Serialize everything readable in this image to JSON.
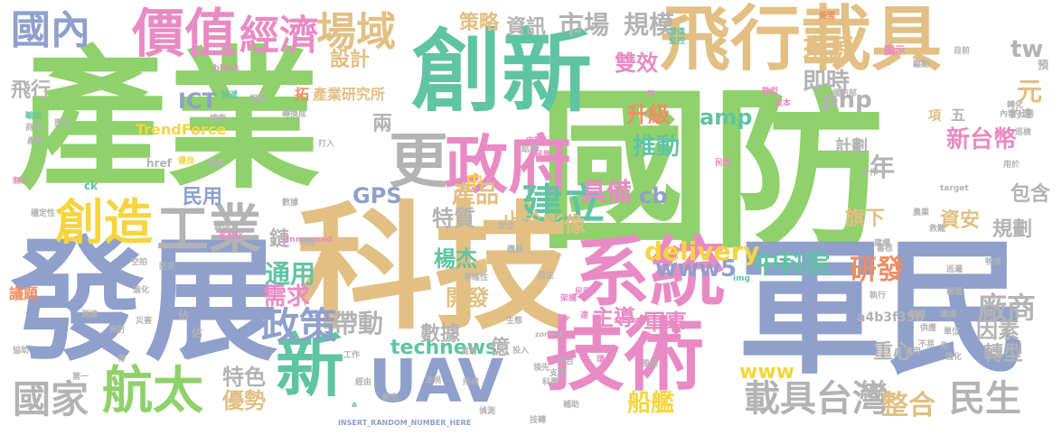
{
  "palette": {
    "green": "#8fd16a",
    "teal": "#5fc4a3",
    "tan": "#e2bf83",
    "blue": "#8ea0cb",
    "pink": "#e88bc4",
    "gray": "#b3b3b3",
    "orange": "#f08d63",
    "yellow": "#f6d43d",
    "darkgray": "#999999"
  },
  "words": [
    {
      "text": "產業",
      "c": "green"
    },
    {
      "text": "國防",
      "c": "green"
    },
    {
      "text": "科技",
      "c": "tan"
    },
    {
      "text": "發展",
      "c": "blue"
    },
    {
      "text": "軍民",
      "c": "blue"
    },
    {
      "text": "創新",
      "c": "teal"
    },
    {
      "text": "飛行載具",
      "c": "tan"
    },
    {
      "text": "技術",
      "c": "pink"
    },
    {
      "text": "系統",
      "c": "pink"
    },
    {
      "text": "政府",
      "c": "pink"
    },
    {
      "text": "新",
      "c": "teal"
    },
    {
      "text": "UAV",
      "c": "blue"
    },
    {
      "text": "更",
      "c": "gray"
    },
    {
      "text": "工業",
      "c": "gray"
    },
    {
      "text": "創造",
      "c": "yellow"
    },
    {
      "text": "航太",
      "c": "green"
    },
    {
      "text": "價值",
      "c": "pink"
    },
    {
      "text": "國內",
      "c": "blue"
    },
    {
      "text": "經濟",
      "c": "pink"
    },
    {
      "text": "場域",
      "c": "tan"
    },
    {
      "text": "建立",
      "c": "teal"
    },
    {
      "text": "具備",
      "c": "pink"
    },
    {
      "text": "國家",
      "c": "gray"
    },
    {
      "text": "載具台灣",
      "c": "gray"
    },
    {
      "text": "民生",
      "c": "gray"
    },
    {
      "text": "政策",
      "c": "blue"
    },
    {
      "text": "廠商",
      "c": "gray"
    },
    {
      "text": "研發",
      "c": "orange"
    },
    {
      "text": "中科院",
      "c": "teal"
    },
    {
      "text": "www5",
      "c": "blue"
    },
    {
      "text": "delivery",
      "c": "yellow"
    },
    {
      "text": "amp",
      "c": "teal"
    },
    {
      "text": "php",
      "c": "gray"
    },
    {
      "text": "ICT",
      "c": "blue"
    },
    {
      "text": "GPS",
      "c": "blue"
    },
    {
      "text": "cb",
      "c": "blue"
    },
    {
      "text": "technews",
      "c": "teal"
    },
    {
      "text": "www",
      "c": "yellow"
    },
    {
      "text": "市場",
      "c": "gray"
    },
    {
      "text": "規模",
      "c": "gray"
    },
    {
      "text": "資訊",
      "c": "gray"
    },
    {
      "text": "策略",
      "c": "tan"
    },
    {
      "text": "設計",
      "c": "tan"
    },
    {
      "text": "來源",
      "c": "tan"
    },
    {
      "text": "雙效",
      "c": "pink"
    },
    {
      "text": "即時",
      "c": "gray"
    },
    {
      "text": "元",
      "c": "tan"
    },
    {
      "text": "tw",
      "c": "gray"
    },
    {
      "text": "升級",
      "c": "orange"
    },
    {
      "text": "推動",
      "c": "teal"
    },
    {
      "text": "新台幣",
      "c": "pink"
    },
    {
      "text": "年",
      "c": "gray"
    },
    {
      "text": "產品",
      "c": "tan"
    },
    {
      "text": "民用",
      "c": "blue"
    },
    {
      "text": "特質",
      "c": "gray"
    },
    {
      "text": "止於",
      "c": "tan"
    },
    {
      "text": "影像",
      "c": "tan"
    },
    {
      "text": "資安",
      "c": "tan"
    },
    {
      "text": "旗下",
      "c": "tan"
    },
    {
      "text": "規劃",
      "c": "gray"
    },
    {
      "text": "包含",
      "c": "gray"
    },
    {
      "text": "通用",
      "c": "teal"
    },
    {
      "text": "需求",
      "c": "pink"
    },
    {
      "text": "楊杰",
      "c": "teal"
    },
    {
      "text": "開發",
      "c": "tan"
    },
    {
      "text": "帶動",
      "c": "gray"
    },
    {
      "text": "主導",
      "c": "pink"
    },
    {
      "text": "軍事",
      "c": "pink"
    },
    {
      "text": "因素",
      "c": "gray"
    },
    {
      "text": "轉型",
      "c": "gray"
    },
    {
      "text": "數據",
      "c": "gray"
    },
    {
      "text": "億",
      "c": "gray"
    },
    {
      "text": "重心",
      "c": "gray"
    },
    {
      "text": "特色",
      "c": "gray"
    },
    {
      "text": "優勢",
      "c": "tan"
    },
    {
      "text": "船艦",
      "c": "yellow"
    },
    {
      "text": "整合",
      "c": "tan"
    },
    {
      "text": "議題",
      "c": "orange"
    },
    {
      "text": "飛行",
      "c": "gray"
    },
    {
      "text": "兩",
      "c": "gray"
    },
    {
      "text": "計劃",
      "c": "gray"
    },
    {
      "text": "拓",
      "c": "orange"
    },
    {
      "text": "產業研究所",
      "c": "tan"
    },
    {
      "text": "TrendForce",
      "c": "yellow"
    },
    {
      "text": "鏈",
      "c": "gray"
    },
    {
      "text": "中",
      "c": "yellow"
    },
    {
      "text": "五",
      "c": "gray"
    },
    {
      "text": "項",
      "c": "tan"
    },
    {
      "text": "href",
      "c": "gray"
    },
    {
      "text": "ck",
      "c": "teal"
    },
    {
      "text": "a4b3f35b",
      "c": "gray"
    },
    {
      "text": "Unmanned",
      "c": "pink"
    },
    {
      "text": "Vehicle",
      "c": "blue"
    },
    {
      "text": "INSERT_RANDOM_NUMBER_HERE",
      "c": "blue"
    },
    {
      "text": "Aerial",
      "c": "pink"
    },
    {
      "text": "zoneid",
      "c": "gray"
    },
    {
      "text": "img",
      "c": "teal"
    },
    {
      "text": "target",
      "c": "gray"
    },
    {
      "text": "_blank",
      "c": "pink"
    },
    {
      "text": "a",
      "c": "teal"
    },
    {
      "text": "n",
      "c": "pink"
    },
    {
      "text": "顯示",
      "c": "pink"
    },
    {
      "text": "約達",
      "c": "gray"
    },
    {
      "text": "預",
      "c": "gray"
    },
    {
      "text": "發達",
      "c": "teal"
    },
    {
      "text": "監控",
      "c": "teal"
    },
    {
      "text": "美國",
      "c": "orange"
    },
    {
      "text": "驅動",
      "c": "gray"
    },
    {
      "text": "快遞",
      "c": "teal"
    },
    {
      "text": "相關",
      "c": "gray"
    },
    {
      "text": "轉換成",
      "c": "gray"
    },
    {
      "text": "搜索",
      "c": "gray"
    },
    {
      "text": "打入",
      "c": "gray"
    },
    {
      "text": "結構",
      "c": "gray"
    },
    {
      "text": "完整",
      "c": "pink"
    },
    {
      "text": "民間",
      "c": "pink"
    },
    {
      "text": "民眾",
      "c": "pink"
    },
    {
      "text": "合作",
      "c": "gray"
    },
    {
      "text": "評估",
      "c": "gray"
    },
    {
      "text": "客製化",
      "c": "pink"
    },
    {
      "text": "傳統",
      "c": "gray"
    },
    {
      "text": "優良",
      "c": "yellow"
    },
    {
      "text": "地理",
      "c": "gray"
    },
    {
      "text": "運用",
      "c": "blue"
    },
    {
      "text": "應用",
      "c": "gray"
    },
    {
      "text": "輸出",
      "c": "teal"
    },
    {
      "text": "商用",
      "c": "gray"
    },
    {
      "text": "產業",
      "c": "gray"
    },
    {
      "text": "無人",
      "c": "pink"
    },
    {
      "text": "穩定性",
      "c": "gray"
    },
    {
      "text": "數據",
      "c": "gray"
    },
    {
      "text": "測繪",
      "c": "gray"
    },
    {
      "text": "協助",
      "c": "gray"
    },
    {
      "text": "第一",
      "c": "gray"
    },
    {
      "text": "帶",
      "c": "gray"
    },
    {
      "text": "佔",
      "c": "gray"
    },
    {
      "text": "估",
      "c": "gray"
    },
    {
      "text": "準確性",
      "c": "gray"
    },
    {
      "text": "定位",
      "c": "gray"
    },
    {
      "text": "自主",
      "c": "gray"
    },
    {
      "text": "生態",
      "c": "gray"
    },
    {
      "text": "國防部",
      "c": "gray"
    },
    {
      "text": "目前",
      "c": "gray"
    },
    {
      "text": "成本",
      "c": "pink"
    },
    {
      "text": "微型",
      "c": "pink"
    },
    {
      "text": "轉化",
      "c": "gray"
    },
    {
      "text": "內需",
      "c": "gray"
    },
    {
      "text": "公務",
      "c": "gray"
    },
    {
      "text": "巡檢",
      "c": "gray"
    },
    {
      "text": "用於",
      "c": "gray"
    },
    {
      "text": "適用",
      "c": "gray"
    },
    {
      "text": "審核",
      "c": "gray"
    },
    {
      "text": "單位",
      "c": "gray"
    },
    {
      "text": "強化",
      "c": "gray"
    },
    {
      "text": "環境",
      "c": "gray"
    },
    {
      "text": "不易",
      "c": "gray"
    },
    {
      "text": "先",
      "c": "gray"
    },
    {
      "text": "執行",
      "c": "gray"
    },
    {
      "text": "高清",
      "c": "gray"
    },
    {
      "text": "領先",
      "c": "gray"
    },
    {
      "text": "投入",
      "c": "gray"
    },
    {
      "text": "法規",
      "c": "gray"
    },
    {
      "text": "航空",
      "c": "gray"
    },
    {
      "text": "環保",
      "c": "pink"
    },
    {
      "text": "達",
      "c": "pink"
    },
    {
      "text": "平台",
      "c": "gray"
    },
    {
      "text": "風險",
      "c": "gray"
    },
    {
      "text": "架構",
      "c": "pink"
    },
    {
      "text": "民國",
      "c": "pink"
    },
    {
      "text": "機器",
      "c": "gray"
    },
    {
      "text": "補助",
      "c": "gray"
    },
    {
      "text": "科學",
      "c": "gray"
    },
    {
      "text": "支援",
      "c": "gray"
    },
    {
      "text": "工作",
      "c": "gray"
    },
    {
      "text": "偵測",
      "c": "gray"
    },
    {
      "text": "技轉",
      "c": "gray"
    },
    {
      "text": "經由",
      "c": "gray"
    },
    {
      "text": "形成",
      "c": "gray"
    },
    {
      "text": "整體",
      "c": "gray"
    },
    {
      "text": "供應",
      "c": "gray"
    },
    {
      "text": "建構",
      "c": "gray"
    },
    {
      "text": "進化",
      "c": "gray"
    },
    {
      "text": "消防",
      "c": "gray"
    },
    {
      "text": "災害",
      "c": "gray"
    },
    {
      "text": "防災",
      "c": "gray"
    },
    {
      "text": "空拍",
      "c": "gray"
    },
    {
      "text": "巡邏",
      "c": "gray"
    },
    {
      "text": "救難",
      "c": "gray"
    },
    {
      "text": "農業",
      "c": "gray"
    },
    {
      "text": "物流",
      "c": "gray"
    },
    {
      "text": "聯盟",
      "c": "gray"
    },
    {
      "text": "國際",
      "c": "gray"
    },
    {
      "text": "能量",
      "c": "gray"
    }
  ]
}
